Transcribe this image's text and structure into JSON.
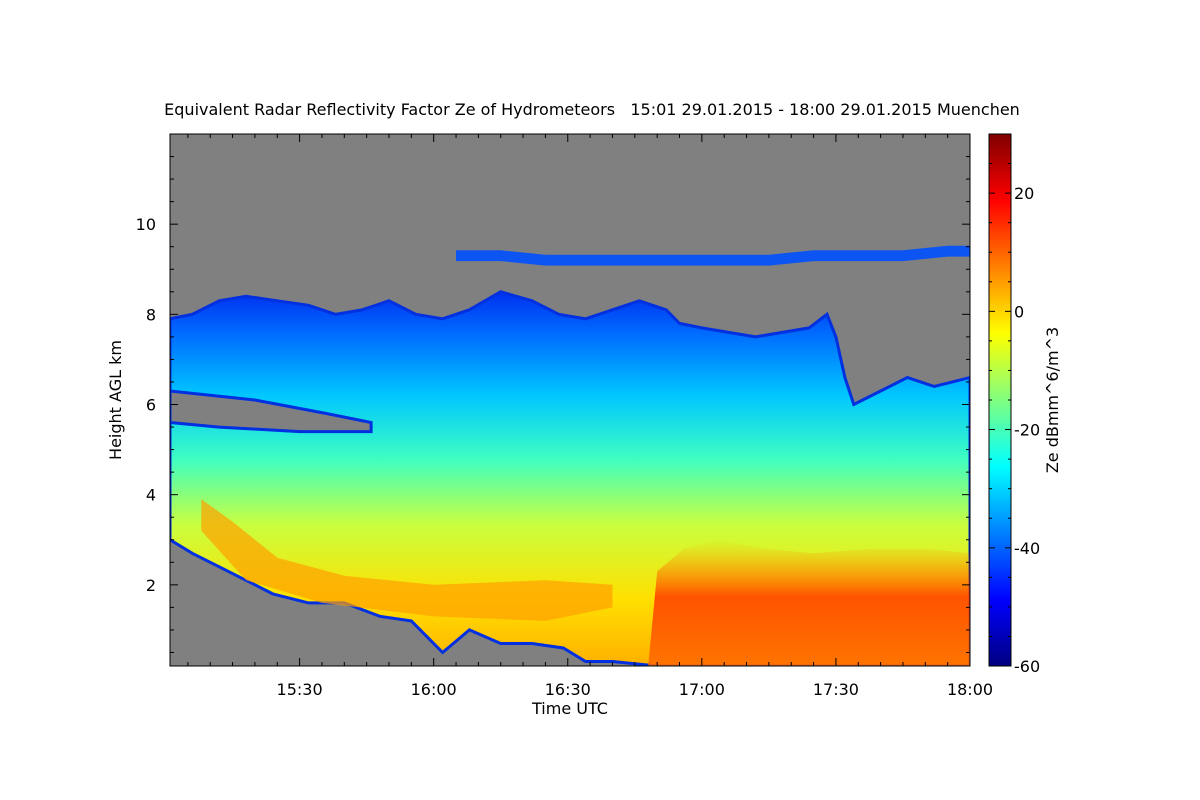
{
  "chart_data": {
    "type": "heatmap",
    "title": "Equivalent Radar Reflectivity Factor Ze of Hydrometeors   15:01 29.01.2015 - 18:00 29.01.2015 Muenchen",
    "xlabel": "Time UTC",
    "ylabel": "Height AGL km",
    "colorbar_label": "Ze dBmm^6/m^3",
    "x_range_minutes": [
      901,
      1080
    ],
    "xlim_labels": [
      "15:01",
      "18:00"
    ],
    "x_ticks": [
      {
        "minute": 930,
        "label": "15:30"
      },
      {
        "minute": 960,
        "label": "16:00"
      },
      {
        "minute": 990,
        "label": "16:30"
      },
      {
        "minute": 1020,
        "label": "17:00"
      },
      {
        "minute": 1050,
        "label": "17:30"
      },
      {
        "minute": 1080,
        "label": "18:00"
      }
    ],
    "ylim": [
      0.2,
      12
    ],
    "y_ticks": [
      2,
      4,
      6,
      8,
      10
    ],
    "colorbar_range": [
      -60,
      30
    ],
    "colorbar_ticks": [
      -60,
      -40,
      -20,
      0,
      20
    ],
    "no_data_color": "#808080",
    "colormap": [
      "#000080",
      "#0000ff",
      "#0080ff",
      "#00ffff",
      "#80ff80",
      "#ffff00",
      "#ff8000",
      "#ff0000",
      "#800000"
    ],
    "cloud_top_km": [
      [
        901,
        7.9
      ],
      [
        906,
        8.0
      ],
      [
        912,
        8.3
      ],
      [
        918,
        8.4
      ],
      [
        925,
        8.3
      ],
      [
        932,
        8.2
      ],
      [
        938,
        8.0
      ],
      [
        944,
        8.1
      ],
      [
        950,
        8.3
      ],
      [
        956,
        8.0
      ],
      [
        962,
        7.9
      ],
      [
        968,
        8.1
      ],
      [
        975,
        8.5
      ],
      [
        982,
        8.3
      ],
      [
        988,
        8.0
      ],
      [
        994,
        7.9
      ],
      [
        1000,
        8.1
      ],
      [
        1006,
        8.3
      ],
      [
        1012,
        8.1
      ],
      [
        1015,
        7.8
      ],
      [
        1020,
        7.7
      ],
      [
        1026,
        7.6
      ],
      [
        1032,
        7.5
      ],
      [
        1038,
        7.6
      ],
      [
        1044,
        7.7
      ],
      [
        1048,
        8.0
      ],
      [
        1050,
        7.5
      ],
      [
        1052,
        6.6
      ],
      [
        1054,
        6.0
      ],
      [
        1060,
        6.3
      ],
      [
        1066,
        6.6
      ],
      [
        1072,
        6.4
      ],
      [
        1080,
        6.6
      ]
    ],
    "cloud_base_km": [
      [
        901,
        3.0
      ],
      [
        906,
        2.7
      ],
      [
        912,
        2.4
      ],
      [
        918,
        2.1
      ],
      [
        924,
        1.8
      ],
      [
        932,
        1.6
      ],
      [
        940,
        1.6
      ],
      [
        948,
        1.3
      ],
      [
        955,
        1.2
      ],
      [
        962,
        0.5
      ],
      [
        968,
        1.0
      ],
      [
        975,
        0.7
      ],
      [
        982,
        0.7
      ],
      [
        989,
        0.6
      ],
      [
        994,
        0.3
      ],
      [
        1000,
        0.3
      ],
      [
        1010,
        0.2
      ],
      [
        1080,
        0.2
      ]
    ],
    "upper_cirrus_km": [
      [
        965,
        9.3
      ],
      [
        975,
        9.3
      ],
      [
        985,
        9.2
      ],
      [
        995,
        9.2
      ],
      [
        1005,
        9.2
      ],
      [
        1015,
        9.2
      ],
      [
        1025,
        9.2
      ],
      [
        1035,
        9.2
      ],
      [
        1045,
        9.3
      ],
      [
        1055,
        9.3
      ],
      [
        1065,
        9.3
      ],
      [
        1075,
        9.4
      ],
      [
        1080,
        9.4
      ]
    ]
  }
}
